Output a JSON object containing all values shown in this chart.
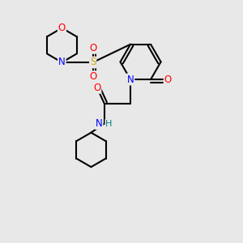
{
  "background_color": "#e8e8e8",
  "bond_color": "#000000",
  "atom_colors": {
    "O": "#ff0000",
    "N": "#0000ff",
    "S": "#ccaa00",
    "H": "#008080",
    "C": "#000000"
  },
  "figsize": [
    3.0,
    3.0
  ],
  "dpi": 100
}
